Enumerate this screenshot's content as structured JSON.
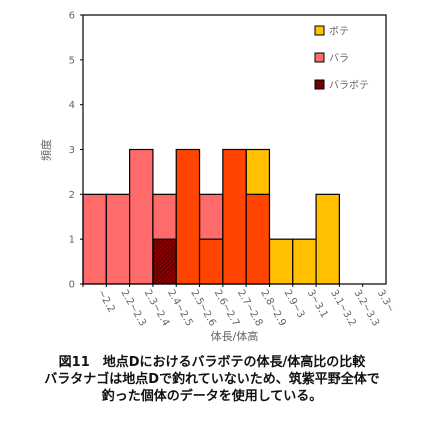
{
  "chart_data": {
    "type": "bar",
    "stacked": true,
    "categories": [
      "~2.2",
      "2.2~2.3",
      "2.3~2.4",
      "2.4~2.5",
      "2.5~2.6",
      "2.6~2.7",
      "2.7~2.8",
      "2.8~2.9",
      "2.9~3",
      "3~3.1",
      "3.1~3.2",
      "3.2~3.3",
      "3.3~"
    ],
    "series": [
      {
        "name": "バラボテ",
        "color": "#8b0000",
        "values": [
          0,
          0,
          0,
          1,
          0,
          0,
          0,
          0,
          0,
          0,
          0,
          0,
          0
        ]
      },
      {
        "name": "バラ",
        "color": "#ff6b6b",
        "values": [
          2,
          2,
          3,
          1,
          1,
          2,
          1,
          0,
          0,
          0,
          0,
          0,
          0
        ]
      },
      {
        "name": "ボテ",
        "color": "#ffc000",
        "values": [
          0,
          0,
          0,
          0,
          0,
          0,
          0,
          3,
          1,
          1,
          2,
          0,
          0
        ]
      }
    ],
    "overlay": {
      "color": "#ff4500",
      "values": [
        0,
        0,
        0,
        0,
        3,
        1,
        3,
        2,
        0,
        0,
        0,
        0,
        0
      ]
    },
    "legend_order": [
      "ボテ",
      "バラ",
      "バラボテ"
    ],
    "legend_position": "top-right",
    "ylim": [
      0,
      6
    ],
    "yticks": [
      "0",
      "1",
      "2",
      "3",
      "4",
      "5",
      "6"
    ],
    "xlabel": "体長/体高",
    "ylabel": "頻度",
    "grid": false
  },
  "caption": {
    "line1": "図11　地点Dにおけるバラボテの体長/体高比の比較",
    "line2": "バラタナゴは地点Dで釣れていないため、筑紫平野全体で",
    "line3": "釣った個体のデータを使用している。"
  }
}
